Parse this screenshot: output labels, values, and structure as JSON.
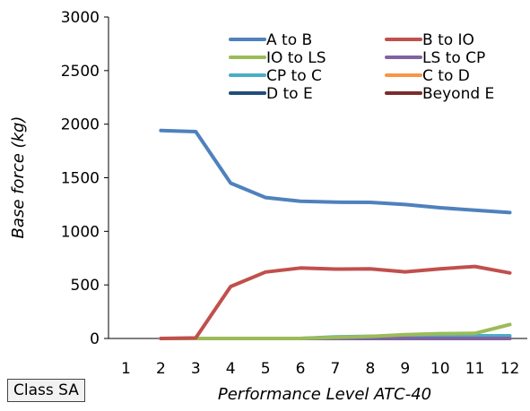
{
  "chart_data": {
    "type": "line",
    "title": "",
    "xlabel": "Performance Level ATC-40",
    "ylabel": "Base force (kg)",
    "x": [
      1,
      2,
      3,
      4,
      5,
      6,
      7,
      8,
      9,
      10,
      11,
      12
    ],
    "xlim": [
      1,
      12
    ],
    "ylim": [
      0,
      3000
    ],
    "yticks": [
      0,
      500,
      1000,
      1500,
      2000,
      2500,
      3000
    ],
    "grid": false,
    "legend_position": "top-right",
    "series": [
      {
        "name": "A to B",
        "color": "#4f81bd",
        "values": [
          null,
          1940,
          1930,
          1450,
          1315,
          1280,
          1272,
          1270,
          1250,
          1220,
          1197,
          1175
        ]
      },
      {
        "name": "B to IO",
        "color": "#c0504d",
        "values": [
          null,
          0,
          5,
          485,
          620,
          658,
          648,
          650,
          622,
          650,
          672,
          612
        ]
      },
      {
        "name": "IO to LS",
        "color": "#9bbb59",
        "values": [
          null,
          0,
          0,
          0,
          0,
          0,
          10,
          18,
          35,
          45,
          48,
          130
        ]
      },
      {
        "name": "LS to CP",
        "color": "#8064a2",
        "values": [
          null,
          0,
          0,
          0,
          0,
          0,
          0,
          0,
          0,
          0,
          0,
          0
        ]
      },
      {
        "name": "CP to C",
        "color": "#4bacc6",
        "values": [
          null,
          0,
          0,
          0,
          0,
          0,
          15,
          20,
          20,
          22,
          25,
          25
        ]
      },
      {
        "name": "C to D",
        "color": "#f79646",
        "values": [
          null,
          0,
          0,
          0,
          0,
          0,
          0,
          0,
          0,
          0,
          0,
          0
        ]
      },
      {
        "name": "D to E",
        "color": "#1f4e79",
        "values": [
          null,
          0,
          0,
          0,
          0,
          0,
          0,
          0,
          0,
          0,
          0,
          0
        ]
      },
      {
        "name": "Beyond E",
        "color": "#7b2c2c",
        "values": [
          null,
          0,
          0,
          0,
          0,
          0,
          0,
          0,
          0,
          0,
          0,
          0
        ]
      }
    ]
  },
  "class_label": "Class SA"
}
